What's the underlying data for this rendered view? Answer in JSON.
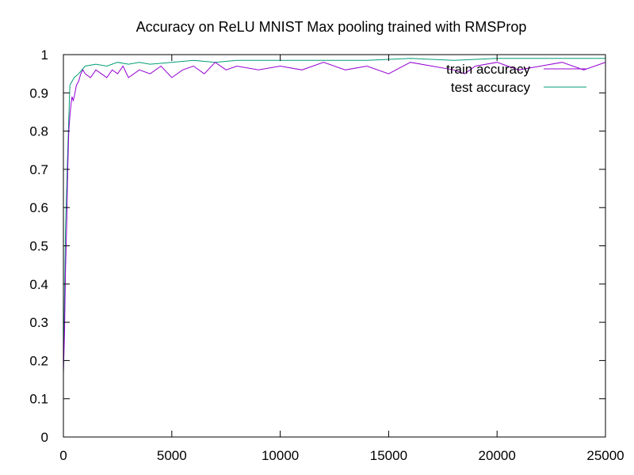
{
  "chart_data": {
    "type": "line",
    "title": "Accuracy on ReLU MNIST Max pooling trained with RMSProp",
    "xlabel": "",
    "ylabel": "",
    "xlim": [
      0,
      25000
    ],
    "ylim": [
      0,
      1
    ],
    "xticks": [
      0,
      5000,
      10000,
      15000,
      20000,
      25000
    ],
    "xtick_labels": [
      "0",
      "5000",
      "10000",
      "15000",
      "20000",
      "25000"
    ],
    "yticks": [
      0,
      0.1,
      0.2,
      0.3,
      0.4,
      0.5,
      0.6,
      0.7,
      0.8,
      0.9,
      1
    ],
    "ytick_labels": [
      "0",
      "0.1",
      "0.2",
      "0.3",
      "0.4",
      "0.5",
      "0.6",
      "0.7",
      "0.8",
      "0.9",
      "1"
    ],
    "grid": false,
    "legend_position": "top-right",
    "series": [
      {
        "name": "train accuracy",
        "color": "#9400d3",
        "x": [
          0,
          50,
          100,
          150,
          200,
          250,
          300,
          350,
          400,
          450,
          500,
          600,
          700,
          800,
          900,
          1000,
          1250,
          1500,
          1750,
          2000,
          2250,
          2500,
          2750,
          3000,
          3500,
          4000,
          4500,
          5000,
          5500,
          6000,
          6500,
          7000,
          7500,
          8000,
          9000,
          10000,
          11000,
          12000,
          13000,
          14000,
          15000,
          16000,
          17000,
          18000,
          18500,
          19000,
          20000,
          21000,
          22000,
          23000,
          24000,
          25000
        ],
        "y": [
          0.17,
          0.27,
          0.44,
          0.55,
          0.7,
          0.8,
          0.84,
          0.87,
          0.89,
          0.88,
          0.89,
          0.92,
          0.93,
          0.95,
          0.96,
          0.95,
          0.94,
          0.96,
          0.95,
          0.94,
          0.96,
          0.95,
          0.97,
          0.94,
          0.96,
          0.95,
          0.97,
          0.94,
          0.96,
          0.97,
          0.95,
          0.98,
          0.96,
          0.97,
          0.96,
          0.97,
          0.96,
          0.98,
          0.96,
          0.97,
          0.95,
          0.98,
          0.97,
          0.96,
          0.95,
          0.97,
          0.98,
          0.96,
          0.97,
          0.98,
          0.96,
          0.98
        ]
      },
      {
        "name": "test accuracy",
        "color": "#009e73",
        "x": [
          0,
          100,
          200,
          300,
          400,
          500,
          700,
          1000,
          1500,
          2000,
          2500,
          3000,
          3500,
          4000,
          5000,
          6000,
          7000,
          8000,
          9000,
          10000,
          12000,
          14000,
          16000,
          18000,
          20000,
          22000,
          24000,
          25000
        ],
        "y": [
          0.16,
          0.55,
          0.75,
          0.92,
          0.93,
          0.94,
          0.95,
          0.97,
          0.975,
          0.97,
          0.98,
          0.975,
          0.98,
          0.975,
          0.98,
          0.985,
          0.98,
          0.985,
          0.985,
          0.985,
          0.985,
          0.985,
          0.99,
          0.985,
          0.99,
          0.99,
          0.99,
          0.99
        ]
      }
    ]
  }
}
